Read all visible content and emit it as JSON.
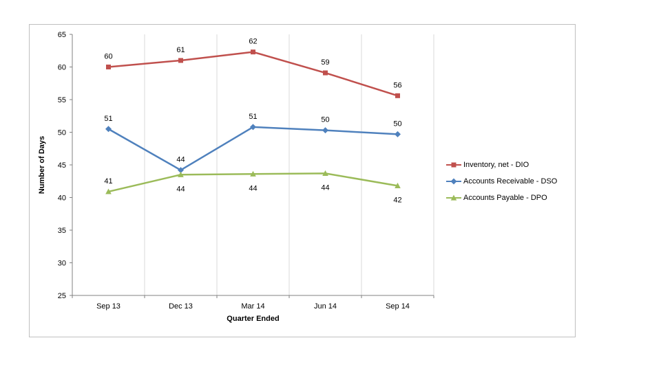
{
  "chart_data": {
    "type": "line",
    "title": "",
    "xlabel": "Quarter Ended",
    "ylabel": "Number of Days",
    "categories": [
      "Sep 13",
      "Dec 13",
      "Mar 14",
      "Jun 14",
      "Sep 14"
    ],
    "ylim": [
      25,
      65
    ],
    "y_ticks": [
      25,
      30,
      35,
      40,
      45,
      50,
      55,
      60,
      65
    ],
    "grid": "vertical-category-lines-only",
    "legend_position": "right",
    "series": [
      {
        "name": "Inventory, net - DIO",
        "color": "#C0504D",
        "marker": "square",
        "values": [
          60,
          61,
          62,
          59,
          56
        ],
        "plot_values": [
          60,
          61,
          62.3,
          59.1,
          55.6
        ],
        "label_side": [
          "above",
          "above",
          "above",
          "above",
          "above"
        ]
      },
      {
        "name": "Accounts Receivable - DSO",
        "color": "#4F81BD",
        "marker": "diamond",
        "values": [
          51,
          44,
          51,
          50,
          50
        ],
        "plot_values": [
          50.5,
          44.2,
          50.8,
          50.3,
          49.7
        ],
        "label_side": [
          "above",
          "above",
          "above",
          "above",
          "above"
        ]
      },
      {
        "name": "Accounts Payable - DPO",
        "color": "#9BBB59",
        "marker": "triangle",
        "values": [
          41,
          44,
          44,
          44,
          42
        ],
        "plot_values": [
          40.9,
          43.5,
          43.6,
          43.7,
          41.8
        ],
        "label_side": [
          "above",
          "below",
          "below",
          "below",
          "below"
        ]
      }
    ],
    "colors": {
      "axis": "#808080",
      "gridline": "#D9D9D9",
      "chart_border": "#BFBFBF",
      "label_text": "#000000"
    }
  }
}
